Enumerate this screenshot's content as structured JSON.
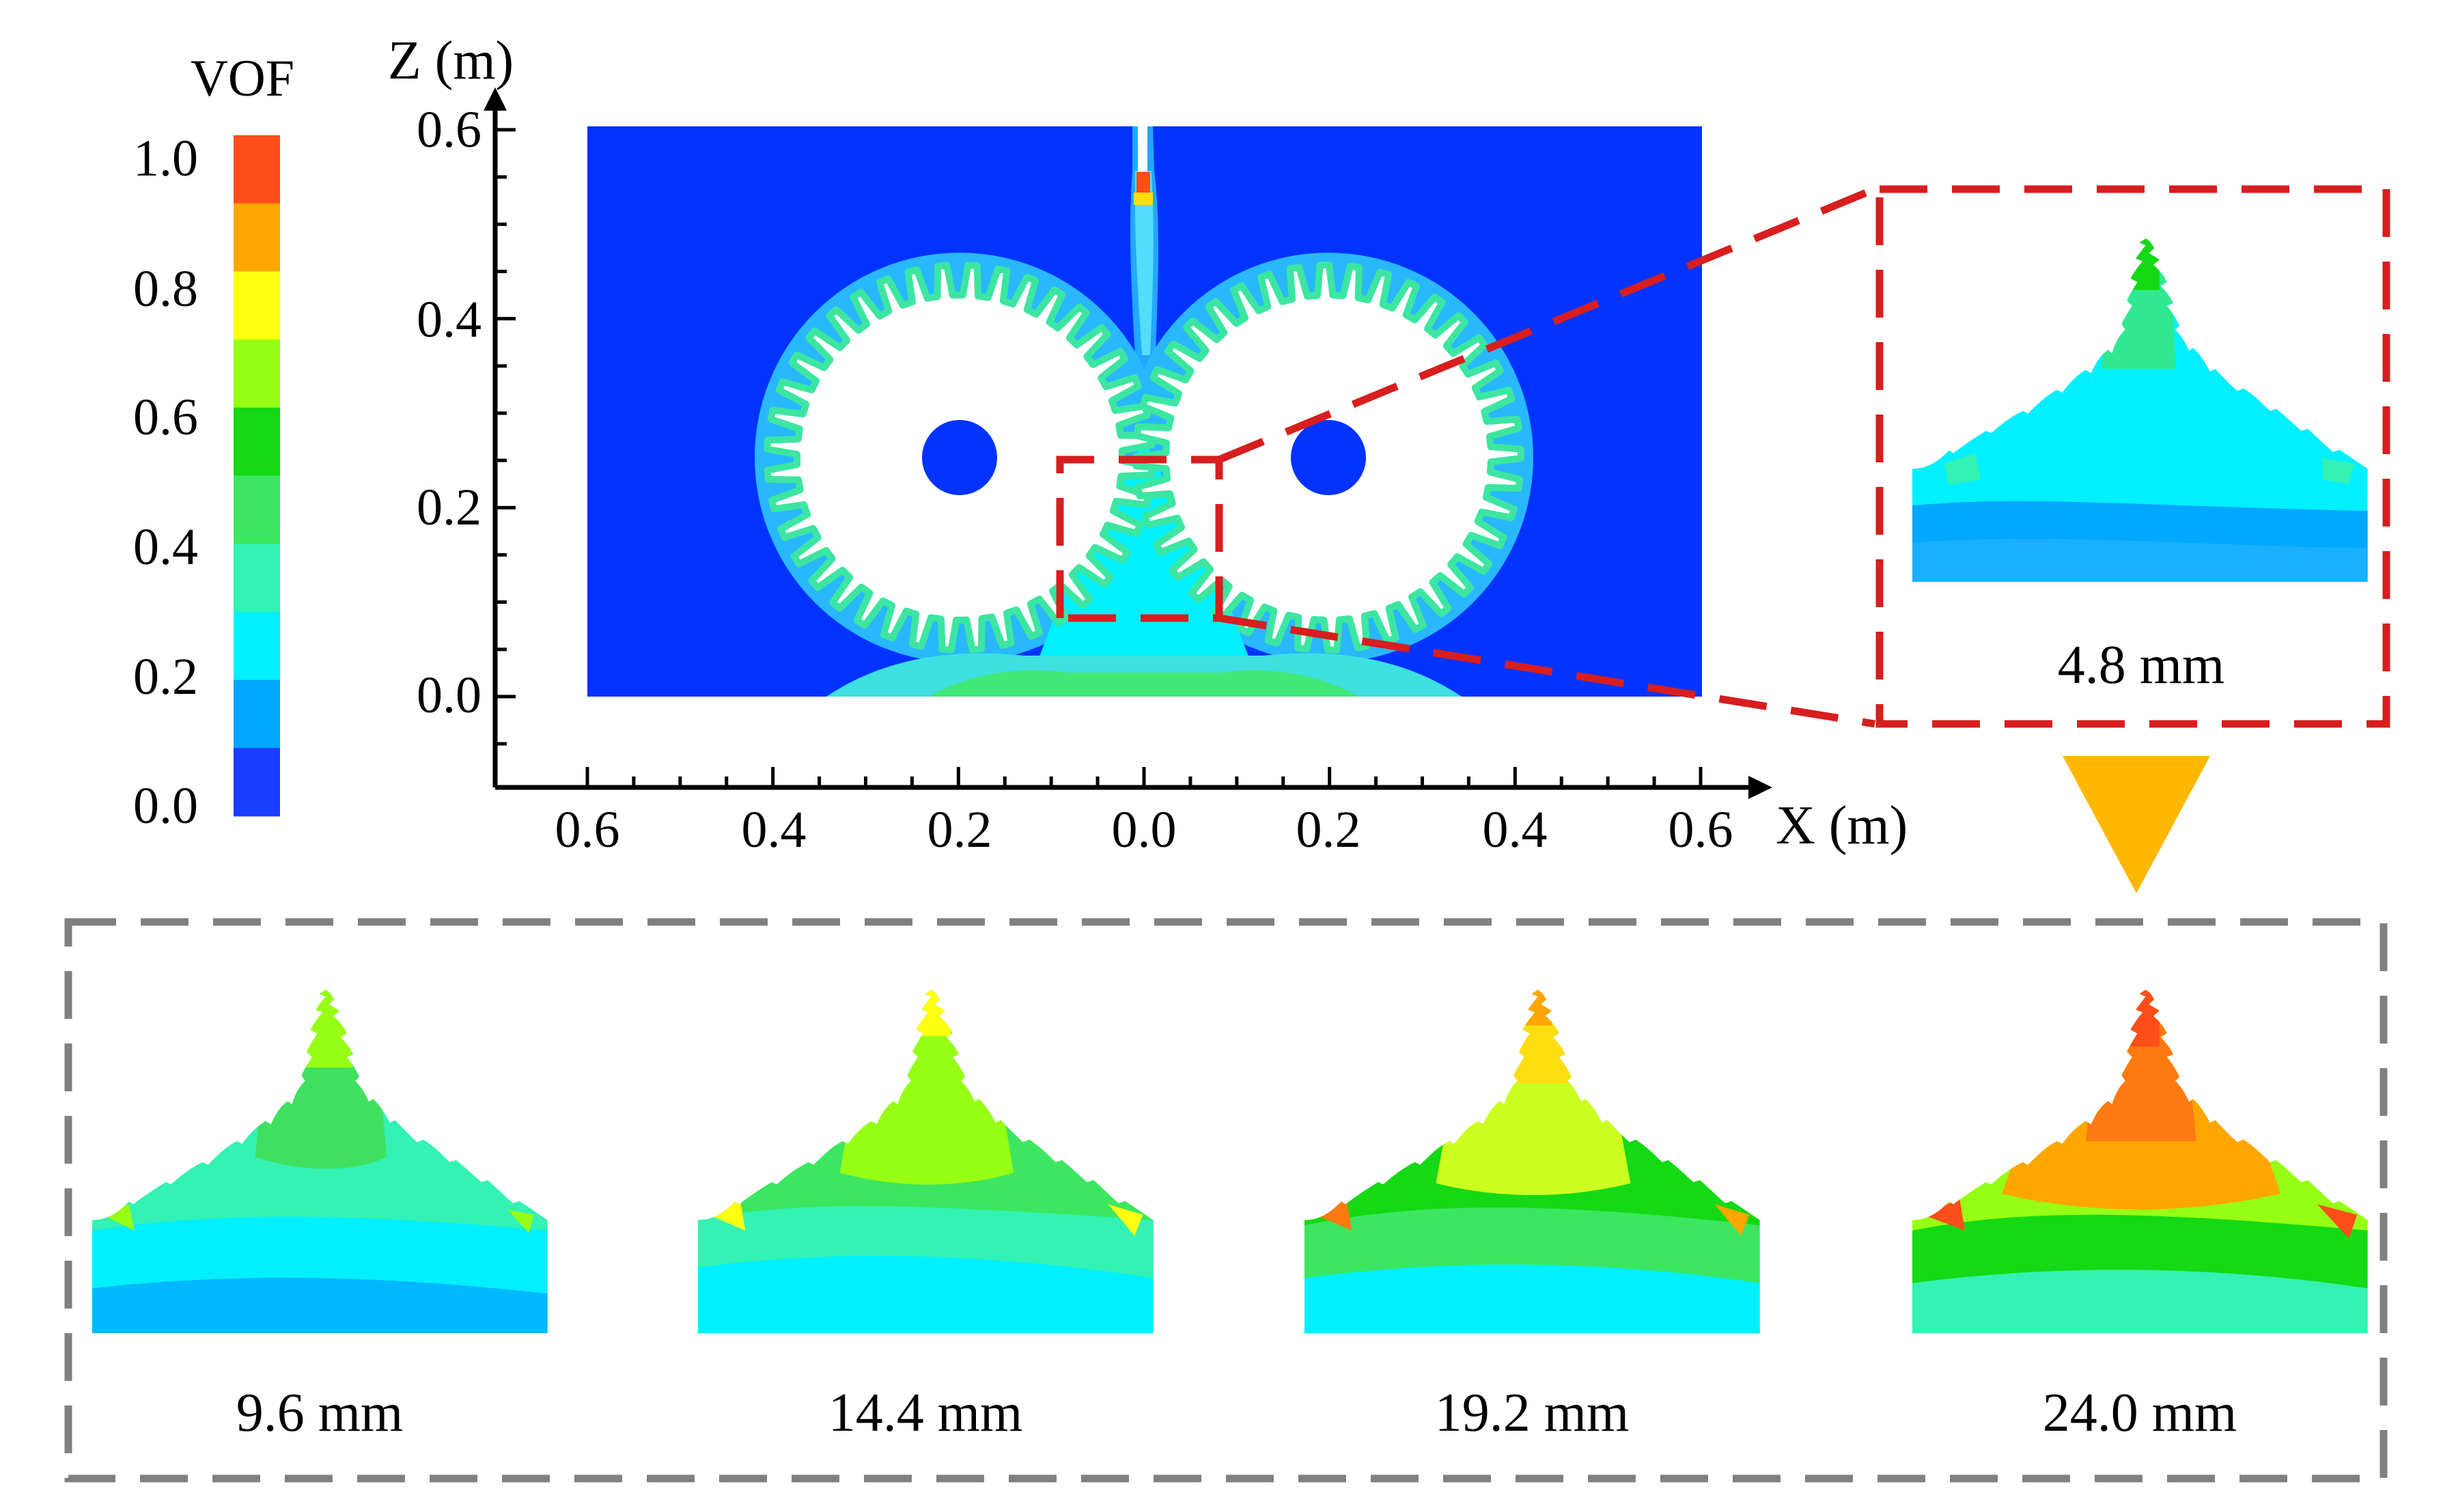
{
  "colorbar": {
    "title": "VOF",
    "ticks": [
      "1.0",
      "0.8",
      "0.6",
      "0.4",
      "0.2",
      "0.0"
    ],
    "colors": [
      "#ff4e1a",
      "#ffa600",
      "#ffff10",
      "#96ff14",
      "#14d914",
      "#3ce660",
      "#33f2b3",
      "#00f0ff",
      "#00a8ff",
      "#1a3cff"
    ]
  },
  "main_plot": {
    "z_axis_label": "Z (m)",
    "x_axis_label": "X (m)",
    "z_ticks": [
      "0.6",
      "0.4",
      "0.2",
      "0.0"
    ],
    "x_ticks": [
      "0.6",
      "0.4",
      "0.2",
      "0.0",
      "0.2",
      "0.4",
      "0.6"
    ],
    "background_color": "#0033ff"
  },
  "zoom_panel": {
    "label": "4.8 mm",
    "frame_color": "#d81e1e"
  },
  "arrow_color": "#ffb800",
  "sequence": {
    "frame_color": "#808080",
    "panels": [
      {
        "label": "9.6 mm"
      },
      {
        "label": "14.4 mm"
      },
      {
        "label": "19.2 mm"
      },
      {
        "label": "24.0 mm"
      }
    ]
  }
}
